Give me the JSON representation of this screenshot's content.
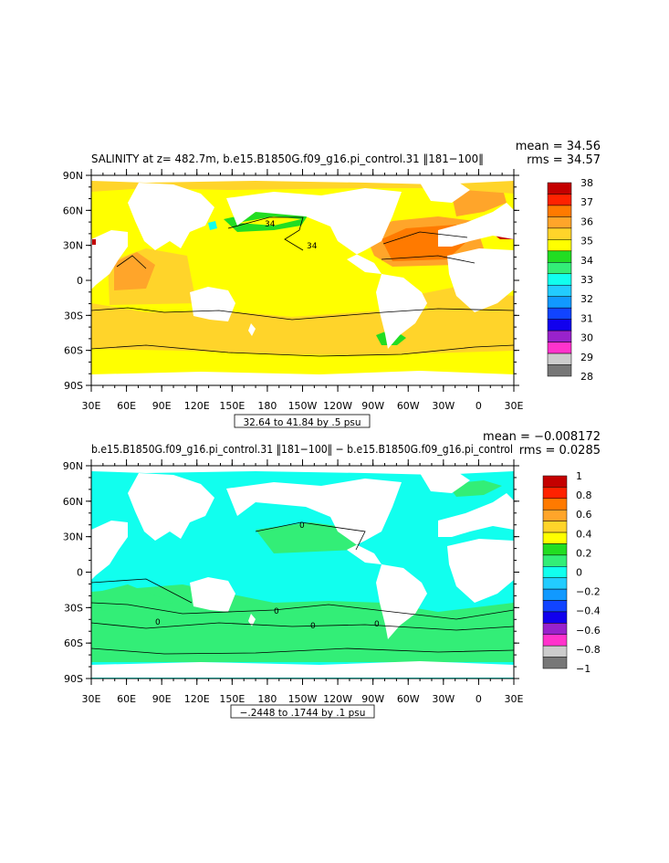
{
  "panels": [
    {
      "title": "SALINITY at z= 482.7m, b.e15.B1850G.f09_g16.pi_control.31 ‖181−100‖",
      "mean": "mean = 34.56",
      "rms": "rms = 34.57",
      "range_note": "32.64 to 41.84 by .5 psu",
      "colorbar": {
        "labels": [
          "38",
          "37",
          "36",
          "35",
          "34",
          "33",
          "32",
          "31",
          "30",
          "29",
          "28"
        ],
        "colors": [
          "#c40000",
          "#ff2200",
          "#ff7a00",
          "#ffa52a",
          "#ffd42a",
          "#ffff00",
          "#22dd22",
          "#33ee77",
          "#11ffee",
          "#22ccff",
          "#1199ff",
          "#1144ff",
          "#1100ee",
          "#9922cc",
          "#ff33cc",
          "#cccccc",
          "#777777"
        ]
      },
      "contour_labels": [
        "34",
        "34"
      ]
    },
    {
      "title": "b.e15.B1850G.f09_g16.pi_control.31 ‖181−100‖ − b.e15.B1850G.f09_g16.pi_control",
      "mean": "mean = −0.008172",
      "rms": "rms = 0.0285",
      "range_note": "−.2448 to .1744 by .1 psu",
      "colorbar": {
        "labels": [
          "1",
          "0.8",
          "0.6",
          "0.4",
          "0.2",
          "0",
          "−0.2",
          "−0.4",
          "−0.6",
          "−0.8",
          "−1"
        ],
        "colors": [
          "#c40000",
          "#ff2200",
          "#ff7a00",
          "#ffa52a",
          "#ffd42a",
          "#ffff00",
          "#22dd22",
          "#33ee77",
          "#11ffee",
          "#22ccff",
          "#1199ff",
          "#1144ff",
          "#1100ee",
          "#9922cc",
          "#ff33cc",
          "#cccccc",
          "#777777"
        ]
      },
      "contour_labels": [
        "0",
        "0",
        "0",
        "0",
        "0"
      ]
    }
  ],
  "axes": {
    "lat_labels": [
      "90N",
      "60N",
      "30N",
      "0",
      "30S",
      "60S",
      "90S"
    ],
    "lon_labels": [
      "30E",
      "60E",
      "90E",
      "120E",
      "150E",
      "180",
      "150W",
      "120W",
      "90W",
      "60W",
      "30W",
      "0",
      "30E"
    ]
  }
}
